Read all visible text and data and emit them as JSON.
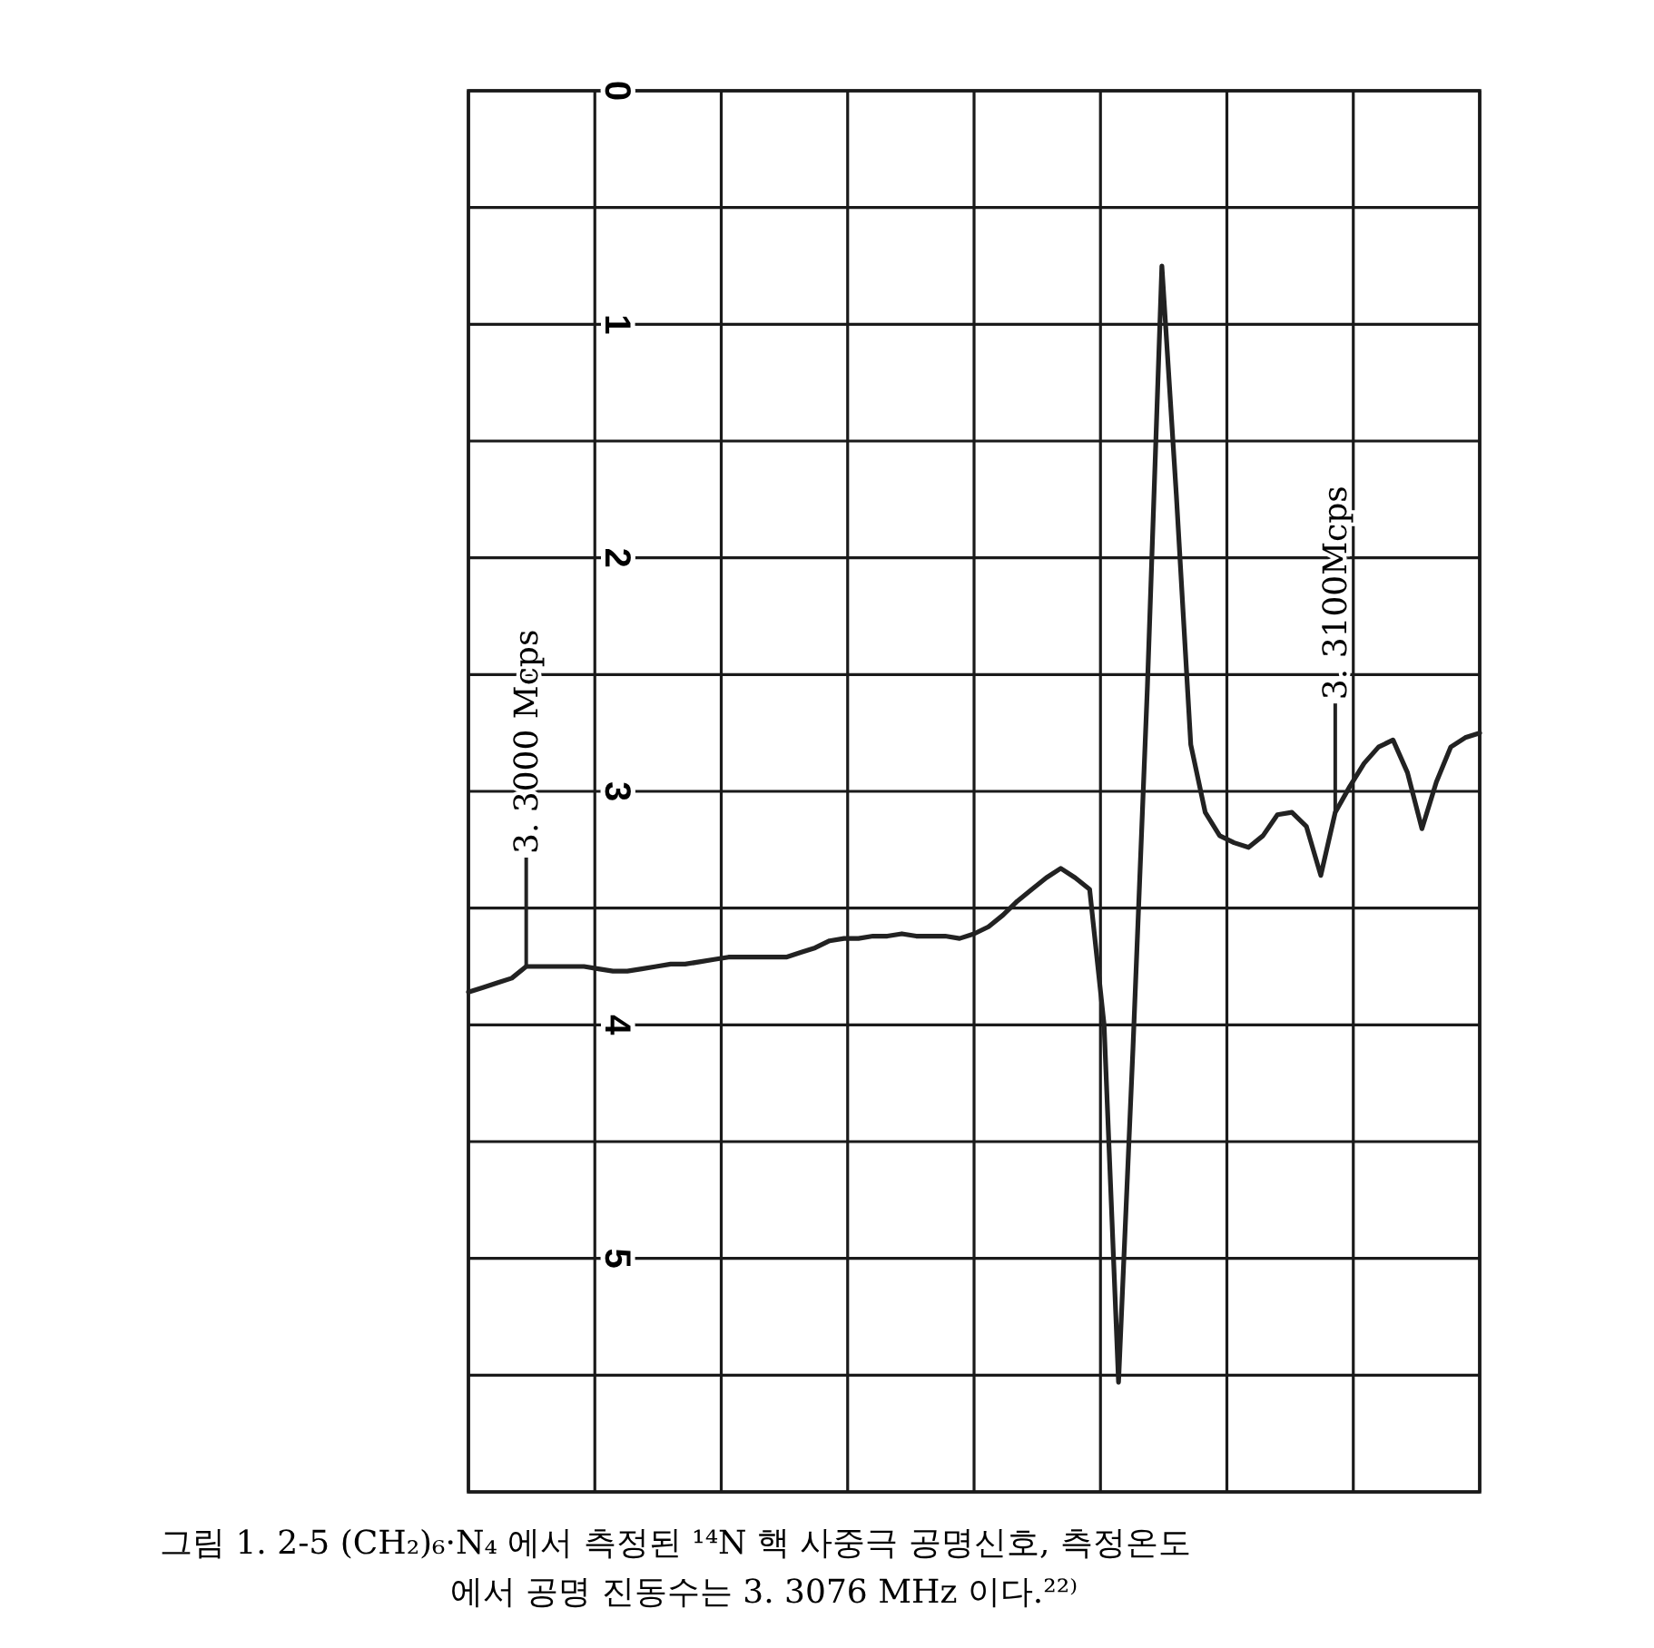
{
  "chart_data": {
    "type": "line",
    "categories": [
      null,
      null,
      null,
      null,
      "3. 3000 Mcps",
      null,
      null,
      null,
      null,
      null,
      null,
      null,
      null,
      null,
      null,
      null,
      null,
      null,
      null,
      null,
      null,
      null,
      null,
      null,
      null,
      null,
      null,
      null,
      null,
      null,
      null,
      null,
      null,
      null,
      null,
      null,
      null,
      null,
      null,
      null,
      null,
      null,
      null,
      null,
      null,
      null,
      null,
      null,
      null,
      null,
      null,
      null,
      null,
      null,
      null,
      null,
      null,
      null,
      null,
      null,
      "3. 3100Mcps",
      null,
      null,
      null,
      null,
      null,
      null,
      null,
      null,
      null,
      null
    ],
    "series": [
      {
        "color": "#222222",
        "values": [
          3.86,
          3.84,
          3.82,
          3.8,
          3.75,
          3.75,
          3.75,
          3.75,
          3.75,
          3.76,
          3.77,
          3.77,
          3.76,
          3.75,
          3.74,
          3.74,
          3.73,
          3.72,
          3.71,
          3.71,
          3.71,
          3.71,
          3.71,
          3.69,
          3.67,
          3.64,
          3.63,
          3.63,
          3.62,
          3.62,
          3.61,
          3.62,
          3.62,
          3.62,
          3.63,
          3.61,
          3.58,
          3.53,
          3.47,
          3.42,
          3.37,
          3.33,
          3.37,
          3.42,
          4.0,
          5.53,
          4.1,
          2.55,
          0.75,
          1.73,
          2.8,
          3.09,
          3.19,
          3.22,
          3.24,
          3.19,
          3.1,
          3.09,
          3.15,
          3.36,
          3.09,
          2.98,
          2.88,
          2.81,
          2.78,
          2.92,
          3.16,
          2.96,
          2.81,
          2.77,
          2.75
        ]
      }
    ],
    "ylim": [
      6,
      0
    ],
    "yticks": [
      0,
      {
        "value": 0.5,
        "label": null
      },
      1,
      {
        "value": 1.5,
        "label": null
      },
      2,
      {
        "value": 2.5,
        "label": null
      },
      3,
      {
        "value": 3.5,
        "label": null
      },
      4,
      {
        "value": 4.5,
        "label": null
      },
      5,
      {
        "value": 5.5,
        "label": null
      },
      {
        "value": 6,
        "label": null
      }
    ],
    "grid": true,
    "marker": "none",
    "line_style": "solid",
    "annotations": [
      "그림 1. 2-5  (CH₂)₆·N₄ 에서 측정된 ¹⁴N 핵 사중극 공명신호, 측정온도",
      "에서 공명 진동수는 3. 3076 MHz 이다.²²⁾"
    ]
  }
}
